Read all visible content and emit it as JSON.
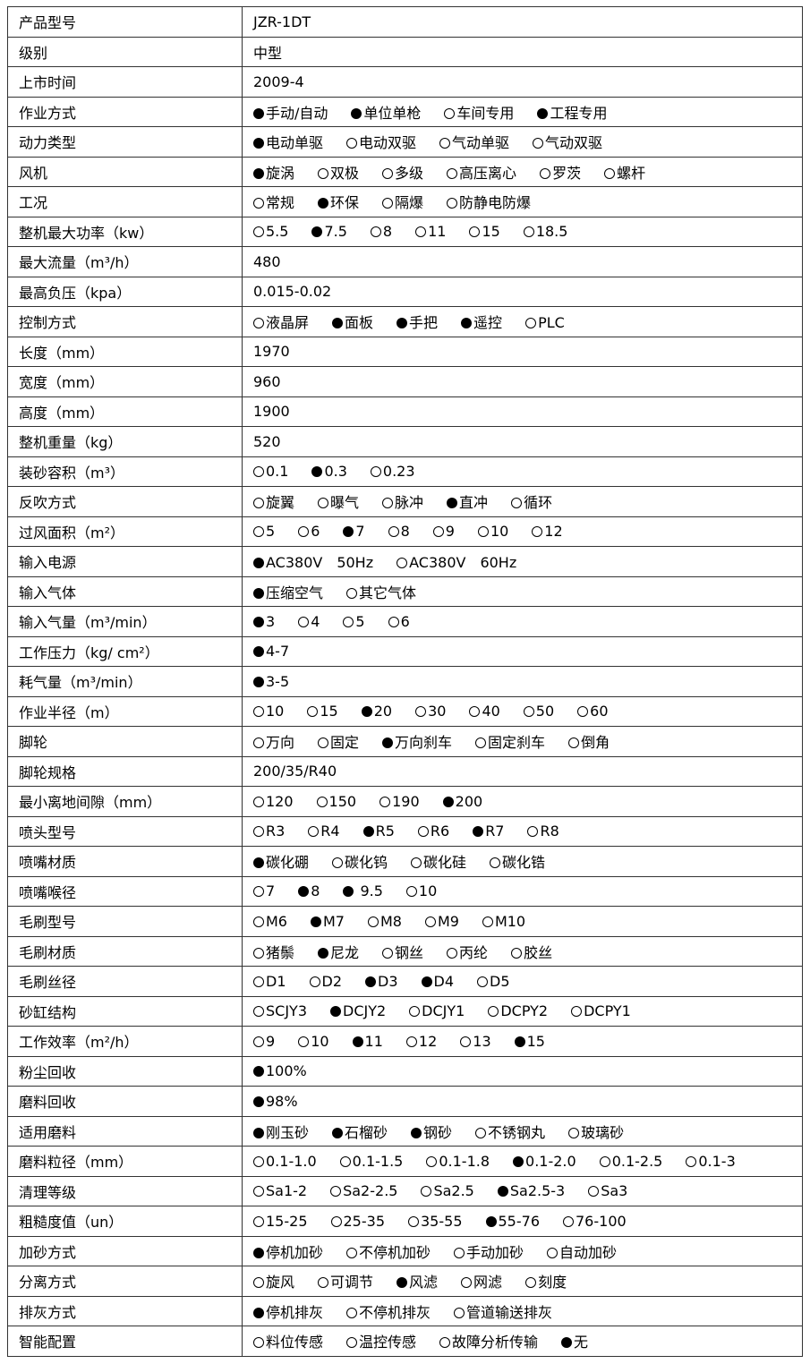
{
  "rows": [
    {
      "label": "产品型号",
      "value": "JZR-1DT"
    },
    {
      "label": "级别",
      "value": "中型"
    },
    {
      "label": "上市时间",
      "value": "2009-4"
    },
    {
      "label": "作业方式",
      "options": [
        {
          "label": "手动/自动",
          "selected": true
        },
        {
          "label": "单位单枪",
          "selected": true
        },
        {
          "label": "车间专用",
          "selected": false
        },
        {
          "label": "工程专用",
          "selected": true
        }
      ]
    },
    {
      "label": "动力类型",
      "options": [
        {
          "label": "电动单驱",
          "selected": true
        },
        {
          "label": "电动双驱",
          "selected": false
        },
        {
          "label": "气动单驱",
          "selected": false
        },
        {
          "label": "气动双驱",
          "selected": false
        }
      ]
    },
    {
      "label": "风机",
      "options": [
        {
          "label": "旋涡",
          "selected": true
        },
        {
          "label": "双极",
          "selected": false
        },
        {
          "label": "多级",
          "selected": false
        },
        {
          "label": "高压离心",
          "selected": false
        },
        {
          "label": "罗茨",
          "selected": false
        },
        {
          "label": "螺杆",
          "selected": false
        }
      ]
    },
    {
      "label": "工况",
      "options": [
        {
          "label": "常规",
          "selected": false
        },
        {
          "label": "环保",
          "selected": true
        },
        {
          "label": "隔爆",
          "selected": false
        },
        {
          "label": "防静电防爆",
          "selected": false
        }
      ]
    },
    {
      "label": "整机最大功率（kw）",
      "options": [
        {
          "label": "5.5",
          "selected": false
        },
        {
          "label": "7.5",
          "selected": true
        },
        {
          "label": "8",
          "selected": false
        },
        {
          "label": "11",
          "selected": false
        },
        {
          "label": "15",
          "selected": false
        },
        {
          "label": "18.5",
          "selected": false
        }
      ]
    },
    {
      "label": "最大流量（m³/h）",
      "value": "480"
    },
    {
      "label": "最高负压（kpa）",
      "value": "0.015-0.02"
    },
    {
      "label": "控制方式",
      "options": [
        {
          "label": "液晶屏",
          "selected": false
        },
        {
          "label": "面板",
          "selected": true
        },
        {
          "label": "手把",
          "selected": true
        },
        {
          "label": "遥控",
          "selected": true
        },
        {
          "label": "PLC",
          "selected": false
        }
      ]
    },
    {
      "label": "长度（mm）",
      "value": "1970"
    },
    {
      "label": "宽度（mm）",
      "value": "960"
    },
    {
      "label": "高度（mm）",
      "value": "1900"
    },
    {
      "label": "整机重量（kg）",
      "value": "520"
    },
    {
      "label": "装砂容积（m³）",
      "options": [
        {
          "label": "0.1",
          "selected": false
        },
        {
          "label": "0.3",
          "selected": true
        },
        {
          "label": "0.23",
          "selected": false
        }
      ]
    },
    {
      "label": "反吹方式",
      "options": [
        {
          "label": "旋翼",
          "selected": false
        },
        {
          "label": "曝气",
          "selected": false
        },
        {
          "label": "脉冲",
          "selected": false
        },
        {
          "label": "直冲",
          "selected": true
        },
        {
          "label": "循环",
          "selected": false
        }
      ]
    },
    {
      "label": "过风面积（m²）",
      "options": [
        {
          "label": "5",
          "selected": false
        },
        {
          "label": "6",
          "selected": false
        },
        {
          "label": "7",
          "selected": true
        },
        {
          "label": "8",
          "selected": false
        },
        {
          "label": "9",
          "selected": false
        },
        {
          "label": "10",
          "selected": false
        },
        {
          "label": "12",
          "selected": false
        }
      ]
    },
    {
      "label": "输入电源",
      "options": [
        {
          "label": "AC380V　50Hz",
          "selected": true
        },
        {
          "label": "AC380V　60Hz",
          "selected": false
        }
      ]
    },
    {
      "label": "输入气体",
      "options": [
        {
          "label": "压缩空气",
          "selected": true
        },
        {
          "label": "其它气体",
          "selected": false
        }
      ]
    },
    {
      "label": "输入气量（m³/min）",
      "options": [
        {
          "label": "3",
          "selected": true
        },
        {
          "label": "4",
          "selected": false
        },
        {
          "label": "5",
          "selected": false
        },
        {
          "label": "6",
          "selected": false
        }
      ]
    },
    {
      "label": "工作压力（kg/ cm²）",
      "options": [
        {
          "label": "4-7",
          "selected": true
        }
      ]
    },
    {
      "label": "耗气量（m³/min）",
      "options": [
        {
          "label": "3-5",
          "selected": true
        }
      ]
    },
    {
      "label": "作业半径（m）",
      "options": [
        {
          "label": "10",
          "selected": false
        },
        {
          "label": "15",
          "selected": false
        },
        {
          "label": "20",
          "selected": true
        },
        {
          "label": "30",
          "selected": false
        },
        {
          "label": "40",
          "selected": false
        },
        {
          "label": "50",
          "selected": false
        },
        {
          "label": "60",
          "selected": false
        }
      ]
    },
    {
      "label": "脚轮",
      "options": [
        {
          "label": "万向",
          "selected": false
        },
        {
          "label": "固定",
          "selected": false
        },
        {
          "label": "万向刹车",
          "selected": true
        },
        {
          "label": "固定刹车",
          "selected": false
        },
        {
          "label": "倒角",
          "selected": false
        }
      ]
    },
    {
      "label": "脚轮规格",
      "value": "200/35/R40"
    },
    {
      "label": "最小离地间隙（mm）",
      "options": [
        {
          "label": "120",
          "selected": false
        },
        {
          "label": "150",
          "selected": false
        },
        {
          "label": "190",
          "selected": false
        },
        {
          "label": "200",
          "selected": true
        }
      ]
    },
    {
      "label": "喷头型号",
      "options": [
        {
          "label": "R3",
          "selected": false
        },
        {
          "label": "R4",
          "selected": false
        },
        {
          "label": "R5",
          "selected": true
        },
        {
          "label": "R6",
          "selected": false
        },
        {
          "label": "R7",
          "selected": true
        },
        {
          "label": "R8",
          "selected": false
        }
      ]
    },
    {
      "label": "喷嘴材质",
      "options": [
        {
          "label": "碳化硼",
          "selected": true
        },
        {
          "label": "碳化钨",
          "selected": false
        },
        {
          "label": "碳化硅",
          "selected": false
        },
        {
          "label": "碳化锆",
          "selected": false
        }
      ]
    },
    {
      "label": "喷嘴喉径",
      "options": [
        {
          "label": "7",
          "selected": false
        },
        {
          "label": "8",
          "selected": true
        },
        {
          "label": " 9.5",
          "selected": true
        },
        {
          "label": "10",
          "selected": false
        }
      ]
    },
    {
      "label": "毛刷型号",
      "options": [
        {
          "label": "M6",
          "selected": false
        },
        {
          "label": "M7",
          "selected": true
        },
        {
          "label": "M8",
          "selected": false
        },
        {
          "label": "M9",
          "selected": false
        },
        {
          "label": "M10",
          "selected": false
        }
      ]
    },
    {
      "label": "毛刷材质",
      "options": [
        {
          "label": "猪鬃",
          "selected": false
        },
        {
          "label": "尼龙",
          "selected": true
        },
        {
          "label": "钢丝",
          "selected": false
        },
        {
          "label": "丙纶",
          "selected": false
        },
        {
          "label": "胶丝",
          "selected": false
        }
      ]
    },
    {
      "label": "毛刷丝径",
      "options": [
        {
          "label": "D1",
          "selected": false
        },
        {
          "label": "D2",
          "selected": false
        },
        {
          "label": "D3",
          "selected": true
        },
        {
          "label": "D4",
          "selected": true
        },
        {
          "label": "D5",
          "selected": false
        }
      ]
    },
    {
      "label": "砂缸结构",
      "options": [
        {
          "label": "SCJY3",
          "selected": false
        },
        {
          "label": "DCJY2",
          "selected": true
        },
        {
          "label": "DCJY1",
          "selected": false
        },
        {
          "label": "DCPY2",
          "selected": false
        },
        {
          "label": "DCPY1",
          "selected": false
        }
      ]
    },
    {
      "label": "工作效率（m²/h）",
      "options": [
        {
          "label": "9",
          "selected": false
        },
        {
          "label": "10",
          "selected": false
        },
        {
          "label": "11",
          "selected": true
        },
        {
          "label": "12",
          "selected": false
        },
        {
          "label": "13",
          "selected": false
        },
        {
          "label": "15",
          "selected": true
        }
      ]
    },
    {
      "label": "粉尘回收",
      "options": [
        {
          "label": "100%",
          "selected": true
        }
      ]
    },
    {
      "label": "磨料回收",
      "options": [
        {
          "label": "98%",
          "selected": true
        }
      ]
    },
    {
      "label": "适用磨料",
      "options": [
        {
          "label": "刚玉砂",
          "selected": true
        },
        {
          "label": "石榴砂",
          "selected": true
        },
        {
          "label": "钢砂",
          "selected": true
        },
        {
          "label": "不锈钢丸",
          "selected": false
        },
        {
          "label": "玻璃砂",
          "selected": false
        }
      ]
    },
    {
      "label": "磨料粒径（mm）",
      "options": [
        {
          "label": "0.1-1.0",
          "selected": false
        },
        {
          "label": "0.1-1.5",
          "selected": false
        },
        {
          "label": "0.1-1.8",
          "selected": false
        },
        {
          "label": "0.1-2.0",
          "selected": true
        },
        {
          "label": "0.1-2.5",
          "selected": false
        },
        {
          "label": "0.1-3",
          "selected": false
        }
      ]
    },
    {
      "label": "清理等级",
      "options": [
        {
          "label": "Sa1-2",
          "selected": false
        },
        {
          "label": "Sa2-2.5",
          "selected": false
        },
        {
          "label": "Sa2.5",
          "selected": false
        },
        {
          "label": "Sa2.5-3",
          "selected": true
        },
        {
          "label": "Sa3",
          "selected": false
        }
      ]
    },
    {
      "label": "粗糙度值（un）",
      "options": [
        {
          "label": "15-25",
          "selected": false
        },
        {
          "label": "25-35",
          "selected": false
        },
        {
          "label": "35-55",
          "selected": false
        },
        {
          "label": "55-76",
          "selected": true
        },
        {
          "label": "76-100",
          "selected": false
        }
      ]
    },
    {
      "label": "加砂方式",
      "options": [
        {
          "label": "停机加砂",
          "selected": true
        },
        {
          "label": "不停机加砂",
          "selected": false
        },
        {
          "label": "手动加砂",
          "selected": false
        },
        {
          "label": "自动加砂",
          "selected": false
        }
      ]
    },
    {
      "label": "分离方式",
      "options": [
        {
          "label": "旋风",
          "selected": false
        },
        {
          "label": "可调节",
          "selected": false
        },
        {
          "label": "风滤",
          "selected": true
        },
        {
          "label": "网滤",
          "selected": false
        },
        {
          "label": "刻度",
          "selected": false
        }
      ]
    },
    {
      "label": "排灰方式",
      "options": [
        {
          "label": "停机排灰",
          "selected": true
        },
        {
          "label": "不停机排灰",
          "selected": false
        },
        {
          "label": "管道输送排灰",
          "selected": false
        }
      ]
    },
    {
      "label": "智能配置",
      "options": [
        {
          "label": "料位传感",
          "selected": false
        },
        {
          "label": "温控传感",
          "selected": false
        },
        {
          "label": "故障分析传输",
          "selected": false
        },
        {
          "label": "无",
          "selected": true
        }
      ]
    }
  ]
}
